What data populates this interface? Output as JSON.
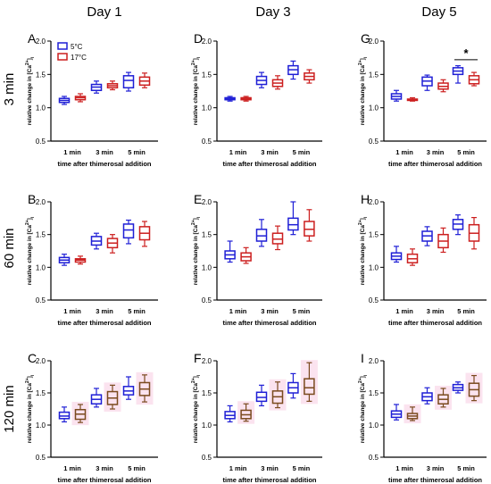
{
  "figure": {
    "column_titles": [
      "Day 1",
      "Day 3",
      "Day 5"
    ],
    "row_titles": [
      "3 min",
      "60 min",
      "120 min"
    ],
    "colors": {
      "c5": "#1f1fd6",
      "c17": "#cc1f1f",
      "c17_brown": "#7a4a1e",
      "highlight": "#fbe3ef",
      "axis": "#000000"
    }
  },
  "chart_data": [
    {
      "type": "box",
      "panel": "A",
      "ylabel": "relative change in [Ca2+]i",
      "xlabel": "time after thimerosal addition",
      "categories": [
        "1 min",
        "3 min",
        "5 min"
      ],
      "ylim": [
        0.5,
        2.0
      ],
      "yticks": [
        0.5,
        1.0,
        1.5,
        2.0
      ],
      "legend": [
        "5°C",
        "17°C"
      ],
      "series": [
        {
          "name": "5°C",
          "color": "blue",
          "boxes": [
            {
              "min": 1.05,
              "q1": 1.08,
              "median": 1.11,
              "q3": 1.14,
              "max": 1.17
            },
            {
              "min": 1.22,
              "q1": 1.26,
              "median": 1.31,
              "q3": 1.35,
              "max": 1.4
            },
            {
              "min": 1.25,
              "q1": 1.3,
              "median": 1.41,
              "q3": 1.48,
              "max": 1.53
            }
          ]
        },
        {
          "name": "17°C",
          "color": "red",
          "boxes": [
            {
              "min": 1.09,
              "q1": 1.12,
              "median": 1.15,
              "q3": 1.17,
              "max": 1.21
            },
            {
              "min": 1.27,
              "q1": 1.3,
              "median": 1.33,
              "q3": 1.36,
              "max": 1.4
            },
            {
              "min": 1.3,
              "q1": 1.34,
              "median": 1.4,
              "q3": 1.46,
              "max": 1.52
            }
          ]
        }
      ]
    },
    {
      "type": "box",
      "panel": "B",
      "ylabel": "relative change in [Ca2+]i",
      "xlabel": "time after thimerosal addition",
      "categories": [
        "1 min",
        "3 min",
        "5 min"
      ],
      "ylim": [
        0.5,
        2.0
      ],
      "yticks": [
        0.5,
        1.0,
        1.5,
        2.0
      ],
      "series": [
        {
          "name": "5°C",
          "color": "blue",
          "boxes": [
            {
              "min": 1.03,
              "q1": 1.07,
              "median": 1.11,
              "q3": 1.15,
              "max": 1.2
            },
            {
              "min": 1.28,
              "q1": 1.34,
              "median": 1.4,
              "q3": 1.47,
              "max": 1.52
            },
            {
              "min": 1.36,
              "q1": 1.45,
              "median": 1.57,
              "q3": 1.66,
              "max": 1.72
            }
          ]
        },
        {
          "name": "17°C",
          "color": "red",
          "boxes": [
            {
              "min": 1.05,
              "q1": 1.08,
              "median": 1.11,
              "q3": 1.13,
              "max": 1.17
            },
            {
              "min": 1.22,
              "q1": 1.3,
              "median": 1.37,
              "q3": 1.44,
              "max": 1.5
            },
            {
              "min": 1.32,
              "q1": 1.42,
              "median": 1.52,
              "q3": 1.62,
              "max": 1.7
            }
          ]
        }
      ]
    },
    {
      "type": "box",
      "panel": "C",
      "ylabel": "relative change in [Ca2+]i",
      "xlabel": "time after thimerosal addition",
      "categories": [
        "1 min",
        "3 min",
        "5 min"
      ],
      "ylim": [
        0.5,
        2.0
      ],
      "yticks": [
        0.5,
        1.0,
        1.5,
        2.0
      ],
      "series": [
        {
          "name": "5°C",
          "color": "blue",
          "boxes": [
            {
              "min": 1.05,
              "q1": 1.1,
              "median": 1.14,
              "q3": 1.2,
              "max": 1.28
            },
            {
              "min": 1.28,
              "q1": 1.33,
              "median": 1.4,
              "q3": 1.47,
              "max": 1.57
            },
            {
              "min": 1.4,
              "q1": 1.47,
              "median": 1.53,
              "q3": 1.6,
              "max": 1.75
            }
          ]
        },
        {
          "name": "17°C",
          "color": "brown",
          "boxes": [
            {
              "min": 1.04,
              "q1": 1.09,
              "median": 1.17,
              "q3": 1.24,
              "max": 1.32
            },
            {
              "min": 1.25,
              "q1": 1.32,
              "median": 1.42,
              "q3": 1.52,
              "max": 1.62
            },
            {
              "min": 1.36,
              "q1": 1.46,
              "median": 1.56,
              "q3": 1.66,
              "max": 1.78
            }
          ]
        }
      ]
    },
    {
      "type": "box",
      "panel": "D",
      "ylabel": "relative change in [Ca2+]i",
      "xlabel": "time after thimerosal addition",
      "categories": [
        "1 min",
        "3 min",
        "5 min"
      ],
      "ylim": [
        0.5,
        2.0
      ],
      "yticks": [
        0.5,
        1.0,
        1.5,
        2.0
      ],
      "series": [
        {
          "name": "5°C",
          "color": "blue",
          "boxes": [
            {
              "min": 1.1,
              "q1": 1.12,
              "median": 1.14,
              "q3": 1.15,
              "max": 1.17
            },
            {
              "min": 1.3,
              "q1": 1.35,
              "median": 1.41,
              "q3": 1.47,
              "max": 1.53
            },
            {
              "min": 1.43,
              "q1": 1.5,
              "median": 1.57,
              "q3": 1.63,
              "max": 1.7
            }
          ]
        },
        {
          "name": "17°C",
          "color": "red",
          "boxes": [
            {
              "min": 1.1,
              "q1": 1.12,
              "median": 1.14,
              "q3": 1.15,
              "max": 1.17
            },
            {
              "min": 1.28,
              "q1": 1.32,
              "median": 1.37,
              "q3": 1.42,
              "max": 1.48
            },
            {
              "min": 1.37,
              "q1": 1.42,
              "median": 1.47,
              "q3": 1.52,
              "max": 1.57
            }
          ]
        }
      ]
    },
    {
      "type": "box",
      "panel": "E",
      "ylabel": "relative change in [Ca2+]i",
      "xlabel": "time after thimerosal addition",
      "categories": [
        "1 min",
        "3 min",
        "5 min"
      ],
      "ylim": [
        0.5,
        2.0
      ],
      "yticks": [
        0.5,
        1.0,
        1.5,
        2.0
      ],
      "series": [
        {
          "name": "5°C",
          "color": "blue",
          "boxes": [
            {
              "min": 1.08,
              "q1": 1.13,
              "median": 1.19,
              "q3": 1.25,
              "max": 1.4
            },
            {
              "min": 1.32,
              "q1": 1.4,
              "median": 1.48,
              "q3": 1.58,
              "max": 1.73
            },
            {
              "min": 1.5,
              "q1": 1.57,
              "median": 1.65,
              "q3": 1.75,
              "max": 2.0
            }
          ]
        },
        {
          "name": "17°C",
          "color": "red",
          "boxes": [
            {
              "min": 1.06,
              "q1": 1.1,
              "median": 1.16,
              "q3": 1.22,
              "max": 1.3
            },
            {
              "min": 1.27,
              "q1": 1.36,
              "median": 1.43,
              "q3": 1.52,
              "max": 1.63
            },
            {
              "min": 1.4,
              "q1": 1.48,
              "median": 1.58,
              "q3": 1.7,
              "max": 1.88
            }
          ]
        }
      ]
    },
    {
      "type": "box",
      "panel": "F",
      "ylabel": "relative change in [Ca2+]i",
      "xlabel": "time after thimerosal addition",
      "categories": [
        "1 min",
        "3 min",
        "5 min"
      ],
      "ylim": [
        0.5,
        2.0
      ],
      "yticks": [
        0.5,
        1.0,
        1.5,
        2.0
      ],
      "series": [
        {
          "name": "5°C",
          "color": "blue",
          "boxes": [
            {
              "min": 1.05,
              "q1": 1.1,
              "median": 1.15,
              "q3": 1.21,
              "max": 1.3
            },
            {
              "min": 1.3,
              "q1": 1.37,
              "median": 1.43,
              "q3": 1.51,
              "max": 1.62
            },
            {
              "min": 1.42,
              "q1": 1.5,
              "median": 1.58,
              "q3": 1.66,
              "max": 1.8
            }
          ]
        },
        {
          "name": "17°C",
          "color": "brown",
          "boxes": [
            {
              "min": 1.06,
              "q1": 1.1,
              "median": 1.16,
              "q3": 1.23,
              "max": 1.33
            },
            {
              "min": 1.27,
              "q1": 1.34,
              "median": 1.44,
              "q3": 1.53,
              "max": 1.67
            },
            {
              "min": 1.37,
              "q1": 1.48,
              "median": 1.58,
              "q3": 1.72,
              "max": 1.97
            }
          ]
        }
      ]
    },
    {
      "type": "box",
      "panel": "G",
      "ylabel": "relative change in [Ca2+]i",
      "xlabel": "time after thimerosal addition",
      "categories": [
        "1 min",
        "3 min",
        "5 min"
      ],
      "ylim": [
        0.5,
        2.0
      ],
      "yticks": [
        0.5,
        1.0,
        1.5,
        2.0
      ],
      "significance": {
        "label": "*",
        "category": "5 min"
      },
      "series": [
        {
          "name": "5°C",
          "color": "blue",
          "boxes": [
            {
              "min": 1.1,
              "q1": 1.13,
              "median": 1.17,
              "q3": 1.21,
              "max": 1.26
            },
            {
              "min": 1.26,
              "q1": 1.33,
              "median": 1.4,
              "q3": 1.46,
              "max": 1.49
            },
            {
              "min": 1.37,
              "q1": 1.5,
              "median": 1.55,
              "q3": 1.6,
              "max": 1.63
            }
          ]
        },
        {
          "name": "17°C",
          "color": "red",
          "boxes": [
            {
              "min": 1.1,
              "q1": 1.11,
              "median": 1.12,
              "q3": 1.13,
              "max": 1.15
            },
            {
              "min": 1.24,
              "q1": 1.28,
              "median": 1.32,
              "q3": 1.37,
              "max": 1.42
            },
            {
              "min": 1.33,
              "q1": 1.36,
              "median": 1.42,
              "q3": 1.48,
              "max": 1.53
            }
          ]
        }
      ]
    },
    {
      "type": "box",
      "panel": "H",
      "ylabel": "relative change in [Ca2+]i",
      "xlabel": "time after thimerosal addition",
      "categories": [
        "1 min",
        "3 min",
        "5 min"
      ],
      "ylim": [
        0.5,
        2.0
      ],
      "yticks": [
        0.5,
        1.0,
        1.5,
        2.0
      ],
      "series": [
        {
          "name": "5°C",
          "color": "blue",
          "boxes": [
            {
              "min": 1.08,
              "q1": 1.12,
              "median": 1.17,
              "q3": 1.22,
              "max": 1.32
            },
            {
              "min": 1.33,
              "q1": 1.4,
              "median": 1.48,
              "q3": 1.55,
              "max": 1.62
            },
            {
              "min": 1.5,
              "q1": 1.58,
              "median": 1.66,
              "q3": 1.73,
              "max": 1.8
            }
          ]
        },
        {
          "name": "17°C",
          "color": "red",
          "boxes": [
            {
              "min": 1.03,
              "q1": 1.07,
              "median": 1.13,
              "q3": 1.2,
              "max": 1.28
            },
            {
              "min": 1.23,
              "q1": 1.3,
              "median": 1.4,
              "q3": 1.5,
              "max": 1.6
            },
            {
              "min": 1.28,
              "q1": 1.4,
              "median": 1.52,
              "q3": 1.65,
              "max": 1.76
            }
          ]
        }
      ]
    },
    {
      "type": "box",
      "panel": "I",
      "ylabel": "relative change in [Ca2+]i",
      "xlabel": "time after thimerosal addition",
      "categories": [
        "1 min",
        "3 min",
        "5 min"
      ],
      "ylim": [
        0.5,
        2.0
      ],
      "yticks": [
        0.5,
        1.0,
        1.5,
        2.0
      ],
      "series": [
        {
          "name": "5°C",
          "color": "blue",
          "boxes": [
            {
              "min": 1.08,
              "q1": 1.12,
              "median": 1.17,
              "q3": 1.22,
              "max": 1.32
            },
            {
              "min": 1.33,
              "q1": 1.38,
              "median": 1.44,
              "q3": 1.5,
              "max": 1.58
            },
            {
              "min": 1.5,
              "q1": 1.54,
              "median": 1.58,
              "q3": 1.63,
              "max": 1.67
            }
          ]
        },
        {
          "name": "17°C",
          "color": "brown",
          "boxes": [
            {
              "min": 1.07,
              "q1": 1.1,
              "median": 1.14,
              "q3": 1.18,
              "max": 1.28
            },
            {
              "min": 1.28,
              "q1": 1.33,
              "median": 1.4,
              "q3": 1.47,
              "max": 1.57
            },
            {
              "min": 1.38,
              "q1": 1.45,
              "median": 1.55,
              "q3": 1.65,
              "max": 1.77
            }
          ]
        }
      ]
    }
  ]
}
